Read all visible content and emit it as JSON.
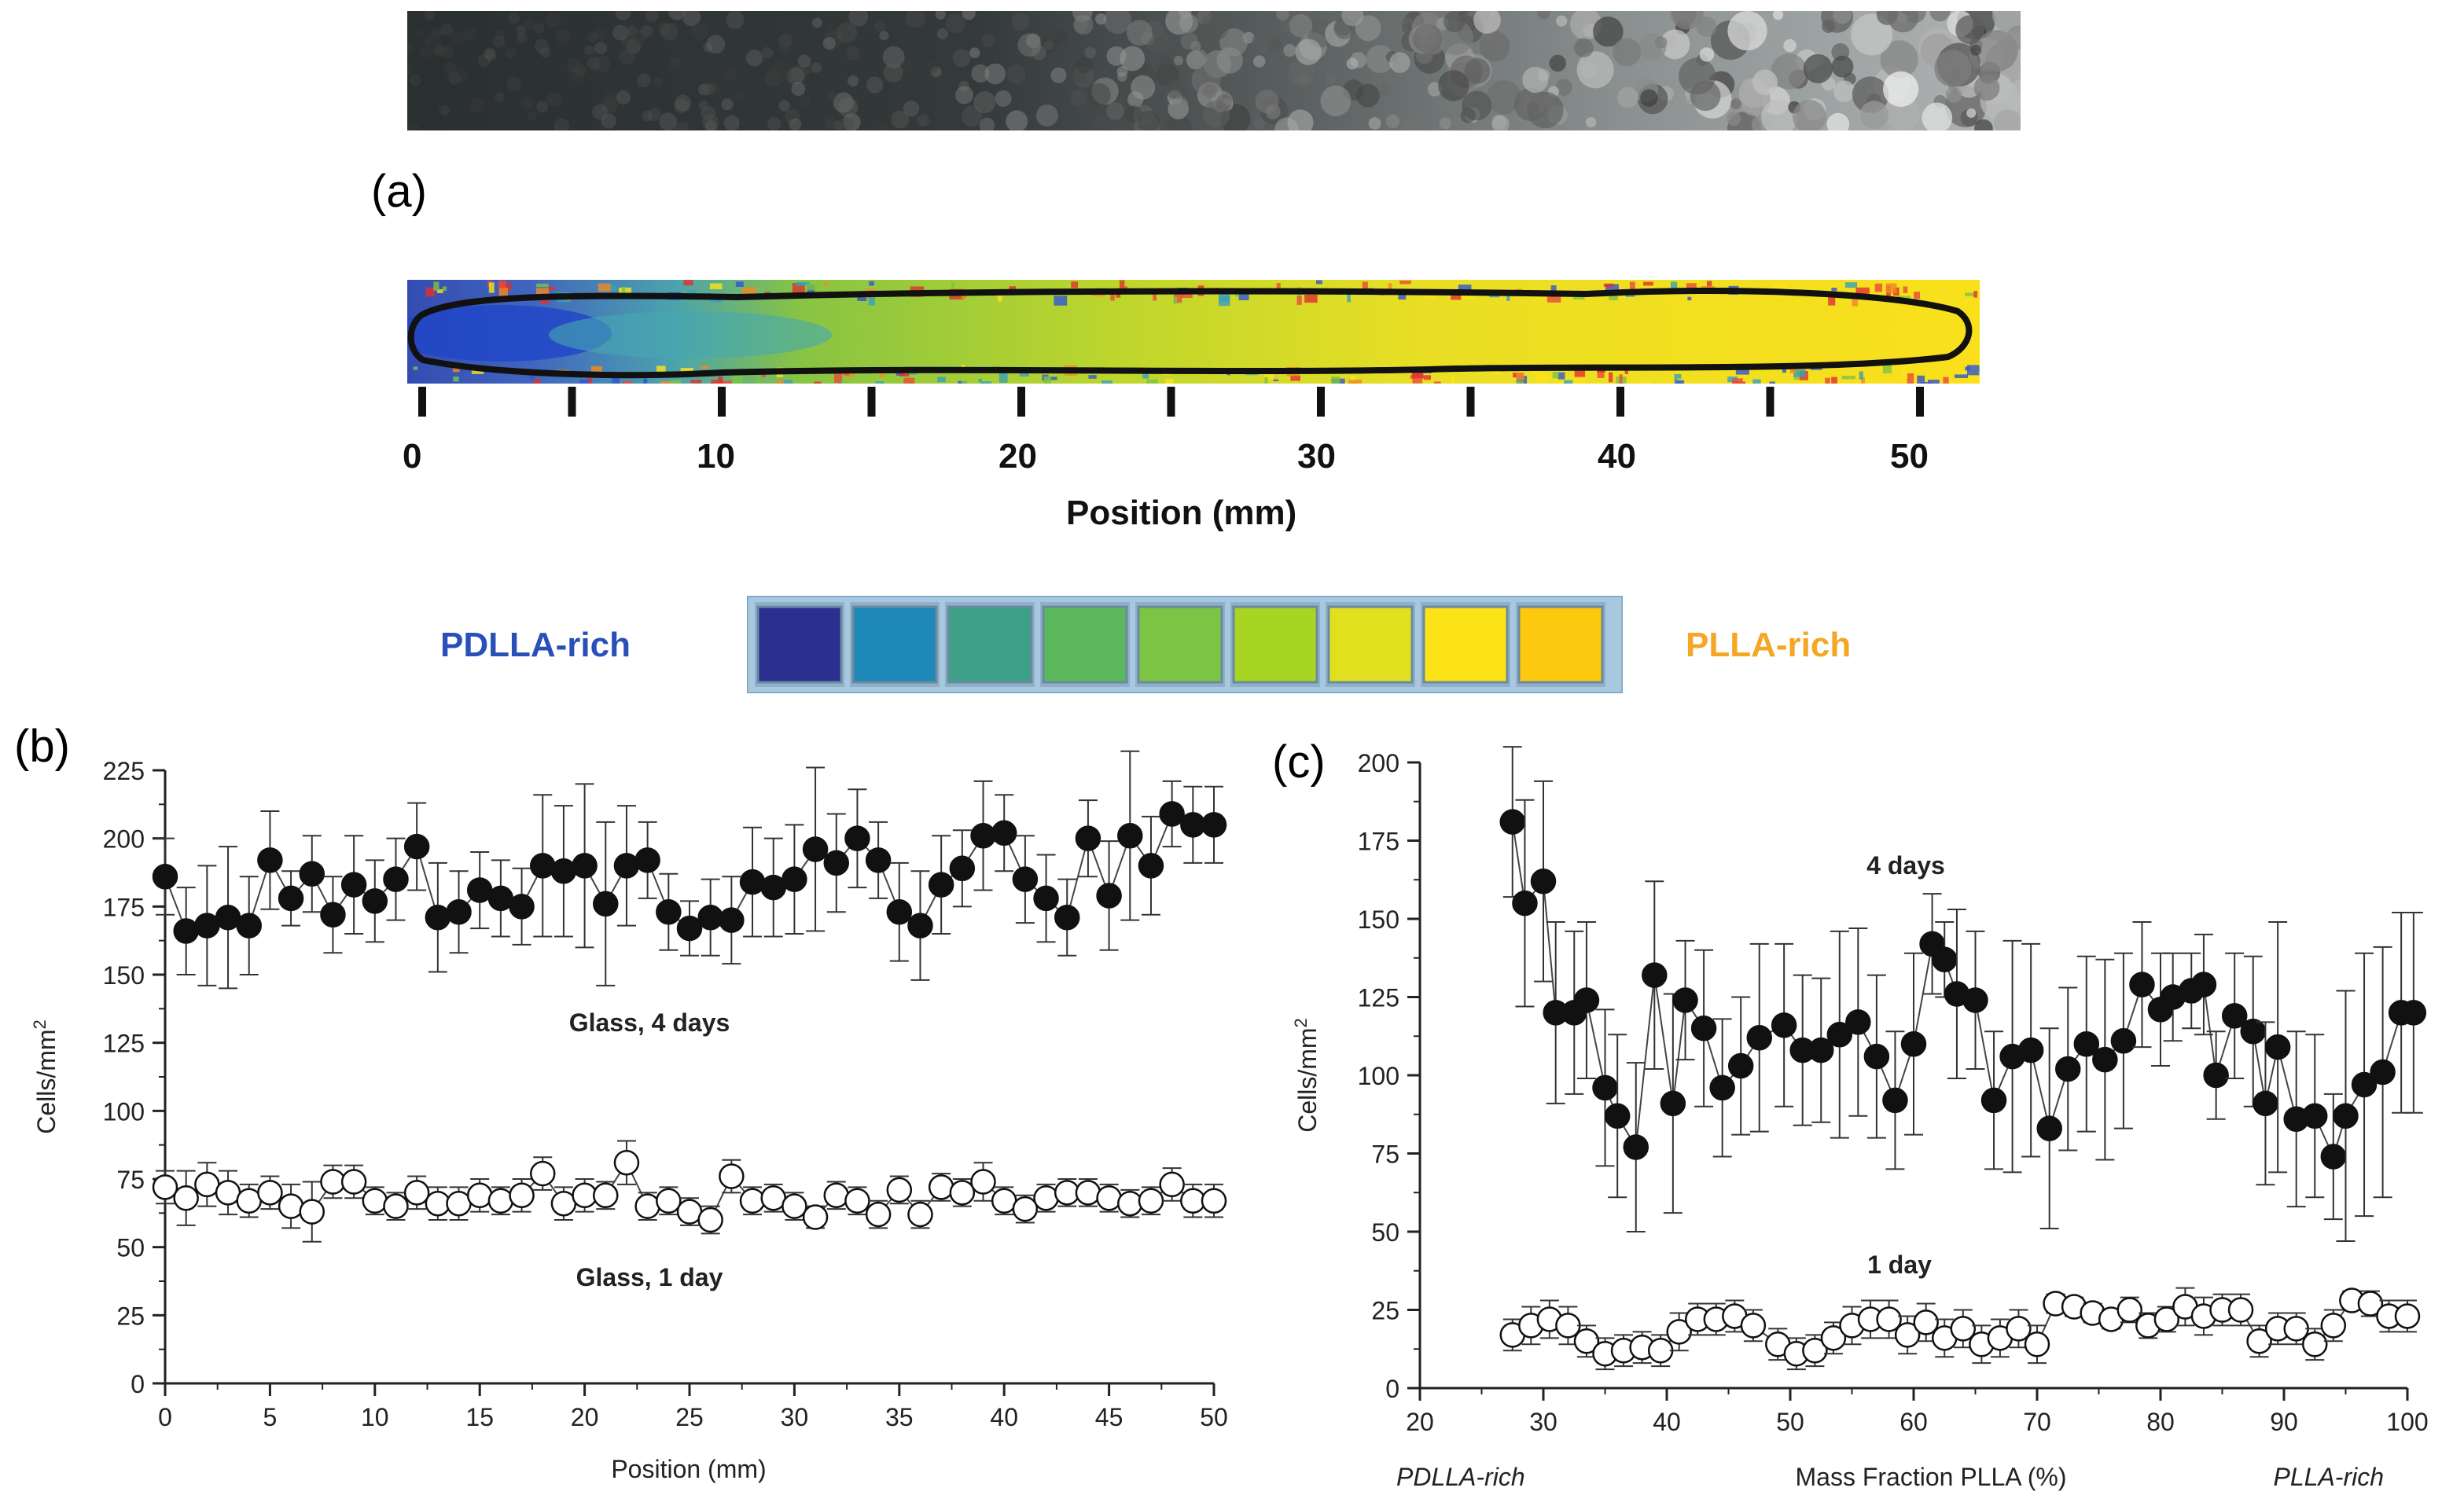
{
  "panel_labels": {
    "a": "(a)",
    "b": "(b)",
    "c": "(c)"
  },
  "panel_a": {
    "axis_ticks": [
      "0",
      "10",
      "20",
      "30",
      "40",
      "50"
    ],
    "axis_label": "Position (mm)",
    "legend_left": "PDLLA-rich",
    "legend_right": "PLLA-rich",
    "legend_left_color": "#2850b8",
    "legend_right_color": "#f5a623",
    "color_scale": [
      "#2b2f8f",
      "#1e88b8",
      "#3fa08a",
      "#5cb85c",
      "#7cc443",
      "#a8d422",
      "#e1e01f",
      "#fbe317",
      "#fdc90e"
    ]
  },
  "chart_data": [
    {
      "type": "scatter",
      "panel": "b",
      "xlabel": "Position (mm)",
      "ylabel": "Cells/mm2",
      "xlim": [
        0,
        50
      ],
      "ylim": [
        0,
        225
      ],
      "xticks": [
        0,
        5,
        10,
        15,
        20,
        25,
        30,
        35,
        40,
        45,
        50
      ],
      "yticks": [
        0,
        25,
        50,
        75,
        100,
        125,
        150,
        175,
        200,
        225
      ],
      "annotations": [
        "Glass, 4 days",
        "Glass, 1 day"
      ],
      "series": [
        {
          "name": "Glass, 4 days",
          "marker": "filled",
          "x": [
            0,
            1,
            2,
            3,
            4,
            5,
            6,
            7,
            8,
            9,
            10,
            11,
            12,
            13,
            14,
            15,
            16,
            17,
            18,
            19,
            20,
            21,
            22,
            23,
            24,
            25,
            26,
            27,
            28,
            29,
            30,
            31,
            32,
            33,
            34,
            35,
            36,
            37,
            38,
            39,
            40,
            41,
            42,
            43,
            44,
            45,
            46,
            47,
            48,
            49,
            50
          ],
          "y": [
            186,
            166,
            168,
            171,
            168,
            192,
            178,
            187,
            172,
            183,
            177,
            185,
            197,
            171,
            173,
            181,
            178,
            175,
            190,
            188,
            190,
            176,
            190,
            192,
            173,
            167,
            171,
            170,
            184,
            182,
            185,
            196,
            191,
            200,
            192,
            173,
            168,
            183,
            189,
            201,
            202,
            185,
            178,
            171,
            200,
            179,
            201,
            190,
            209,
            205,
            205
          ],
          "err": [
            14,
            16,
            22,
            26,
            18,
            18,
            10,
            14,
            14,
            18,
            15,
            15,
            16,
            20,
            15,
            14,
            14,
            14,
            26,
            24,
            30,
            30,
            22,
            14,
            14,
            10,
            14,
            16,
            20,
            18,
            20,
            30,
            18,
            18,
            14,
            18,
            20,
            18,
            14,
            20,
            14,
            16,
            16,
            14,
            14,
            20,
            31,
            18,
            12,
            14,
            14
          ]
        },
        {
          "name": "Glass, 1 day",
          "marker": "open",
          "x": [
            0,
            1,
            2,
            3,
            4,
            5,
            6,
            7,
            8,
            9,
            10,
            11,
            12,
            13,
            14,
            15,
            16,
            17,
            18,
            19,
            20,
            21,
            22,
            23,
            24,
            25,
            26,
            27,
            28,
            29,
            30,
            31,
            32,
            33,
            34,
            35,
            36,
            37,
            38,
            39,
            40,
            41,
            42,
            43,
            44,
            45,
            46,
            47,
            48,
            49,
            50
          ],
          "y": [
            72,
            68,
            73,
            70,
            67,
            70,
            65,
            63,
            74,
            74,
            67,
            65,
            70,
            66,
            66,
            69,
            67,
            69,
            77,
            66,
            69,
            69,
            81,
            65,
            67,
            63,
            60,
            76,
            67,
            68,
            65,
            61,
            69,
            67,
            62,
            71,
            62,
            72,
            70,
            74,
            67,
            64,
            68,
            70,
            70,
            68,
            66,
            67,
            73,
            67,
            67
          ],
          "err": [
            6,
            10,
            8,
            8,
            6,
            6,
            8,
            11,
            6,
            6,
            5,
            5,
            6,
            6,
            6,
            6,
            5,
            6,
            6,
            6,
            6,
            5,
            8,
            5,
            5,
            5,
            5,
            6,
            5,
            5,
            5,
            4,
            5,
            5,
            5,
            5,
            5,
            5,
            5,
            7,
            5,
            5,
            5,
            5,
            5,
            5,
            5,
            5,
            6,
            6,
            6
          ]
        }
      ]
    },
    {
      "type": "scatter",
      "panel": "c",
      "xlabel": "Mass Fraction PLLA (%)",
      "xlabel_left": "PDLLA-rich",
      "xlabel_right": "PLLA-rich",
      "ylabel": "Cells/mm2",
      "xlim": [
        20,
        100
      ],
      "ylim": [
        0,
        200
      ],
      "xticks": [
        20,
        30,
        40,
        50,
        60,
        70,
        80,
        90,
        100
      ],
      "yticks": [
        0,
        25,
        50,
        75,
        100,
        125,
        150,
        175,
        200
      ],
      "annotations": [
        "4 days",
        "1 day"
      ],
      "series": [
        {
          "name": "4 days",
          "marker": "filled",
          "x": [
            27.5,
            28.5,
            30.0,
            31.0,
            32.5,
            33.5,
            35.0,
            36.0,
            37.5,
            39.0,
            40.5,
            41.5,
            43.0,
            44.5,
            46.0,
            47.5,
            49.5,
            51.0,
            52.5,
            54.0,
            55.5,
            57.0,
            58.5,
            60.0,
            61.5,
            62.5,
            63.5,
            65.0,
            66.5,
            68.0,
            69.5,
            71.0,
            72.5,
            74.0,
            75.5,
            77.0,
            78.5,
            80.0,
            81.0,
            82.5,
            83.5,
            84.5,
            86.0,
            87.5,
            88.5,
            89.5,
            91.0,
            92.5,
            94.0,
            95.0,
            96.5,
            98.0,
            99.5,
            100.5
          ],
          "y": [
            181,
            155,
            162,
            120,
            120,
            124,
            96,
            87,
            77,
            132,
            91,
            124,
            115,
            96,
            103,
            112,
            116,
            108,
            108,
            113,
            117,
            106,
            92,
            110,
            142,
            137,
            126,
            124,
            92,
            106,
            108,
            83,
            102,
            110,
            105,
            111,
            129,
            121,
            125,
            127,
            129,
            100,
            119,
            114,
            91,
            109,
            86,
            87,
            74,
            87,
            97,
            101,
            120,
            120
          ],
          "err": [
            24,
            33,
            32,
            29,
            26,
            25,
            25,
            26,
            27,
            30,
            35,
            19,
            25,
            22,
            22,
            30,
            26,
            24,
            23,
            33,
            30,
            26,
            22,
            29,
            16,
            12,
            27,
            22,
            22,
            37,
            34,
            32,
            26,
            28,
            32,
            28,
            20,
            18,
            14,
            12,
            16,
            14,
            20,
            24,
            26,
            40,
            28,
            26,
            20,
            40,
            42,
            40,
            32,
            32
          ]
        },
        {
          "name": "1 day",
          "marker": "open",
          "x": [
            27.5,
            29.0,
            30.5,
            32.0,
            33.5,
            35.0,
            36.5,
            38.0,
            39.5,
            41.0,
            42.5,
            44.0,
            45.5,
            47.0,
            49.0,
            50.5,
            52.0,
            53.5,
            55.0,
            56.5,
            58.0,
            59.5,
            61.0,
            62.5,
            64.0,
            65.5,
            67.0,
            68.5,
            70.0,
            71.5,
            73.0,
            74.5,
            76.0,
            77.5,
            79.0,
            80.5,
            82.0,
            83.5,
            85.0,
            86.5,
            88.0,
            89.5,
            91.0,
            92.5,
            94.0,
            95.5,
            97.0,
            98.5,
            100.0
          ],
          "y": [
            17,
            20,
            22,
            20,
            15,
            11,
            12,
            13,
            12,
            18,
            22,
            22,
            23,
            20,
            14,
            11,
            12,
            16,
            20,
            22,
            22,
            17,
            21,
            16,
            19,
            14,
            16,
            19,
            14,
            27,
            26,
            24,
            22,
            25,
            20,
            22,
            26,
            23,
            25,
            25,
            15,
            19,
            19,
            14,
            20,
            28,
            27,
            23,
            23
          ],
          "err": [
            5,
            6,
            6,
            6,
            5,
            5,
            5,
            5,
            5,
            6,
            5,
            5,
            5,
            5,
            5,
            5,
            5,
            5,
            6,
            6,
            6,
            6,
            6,
            6,
            6,
            6,
            6,
            6,
            6,
            3,
            3,
            3,
            3,
            4,
            4,
            4,
            6,
            6,
            5,
            5,
            5,
            5,
            5,
            5,
            5,
            3,
            4,
            5,
            5
          ]
        }
      ]
    }
  ]
}
